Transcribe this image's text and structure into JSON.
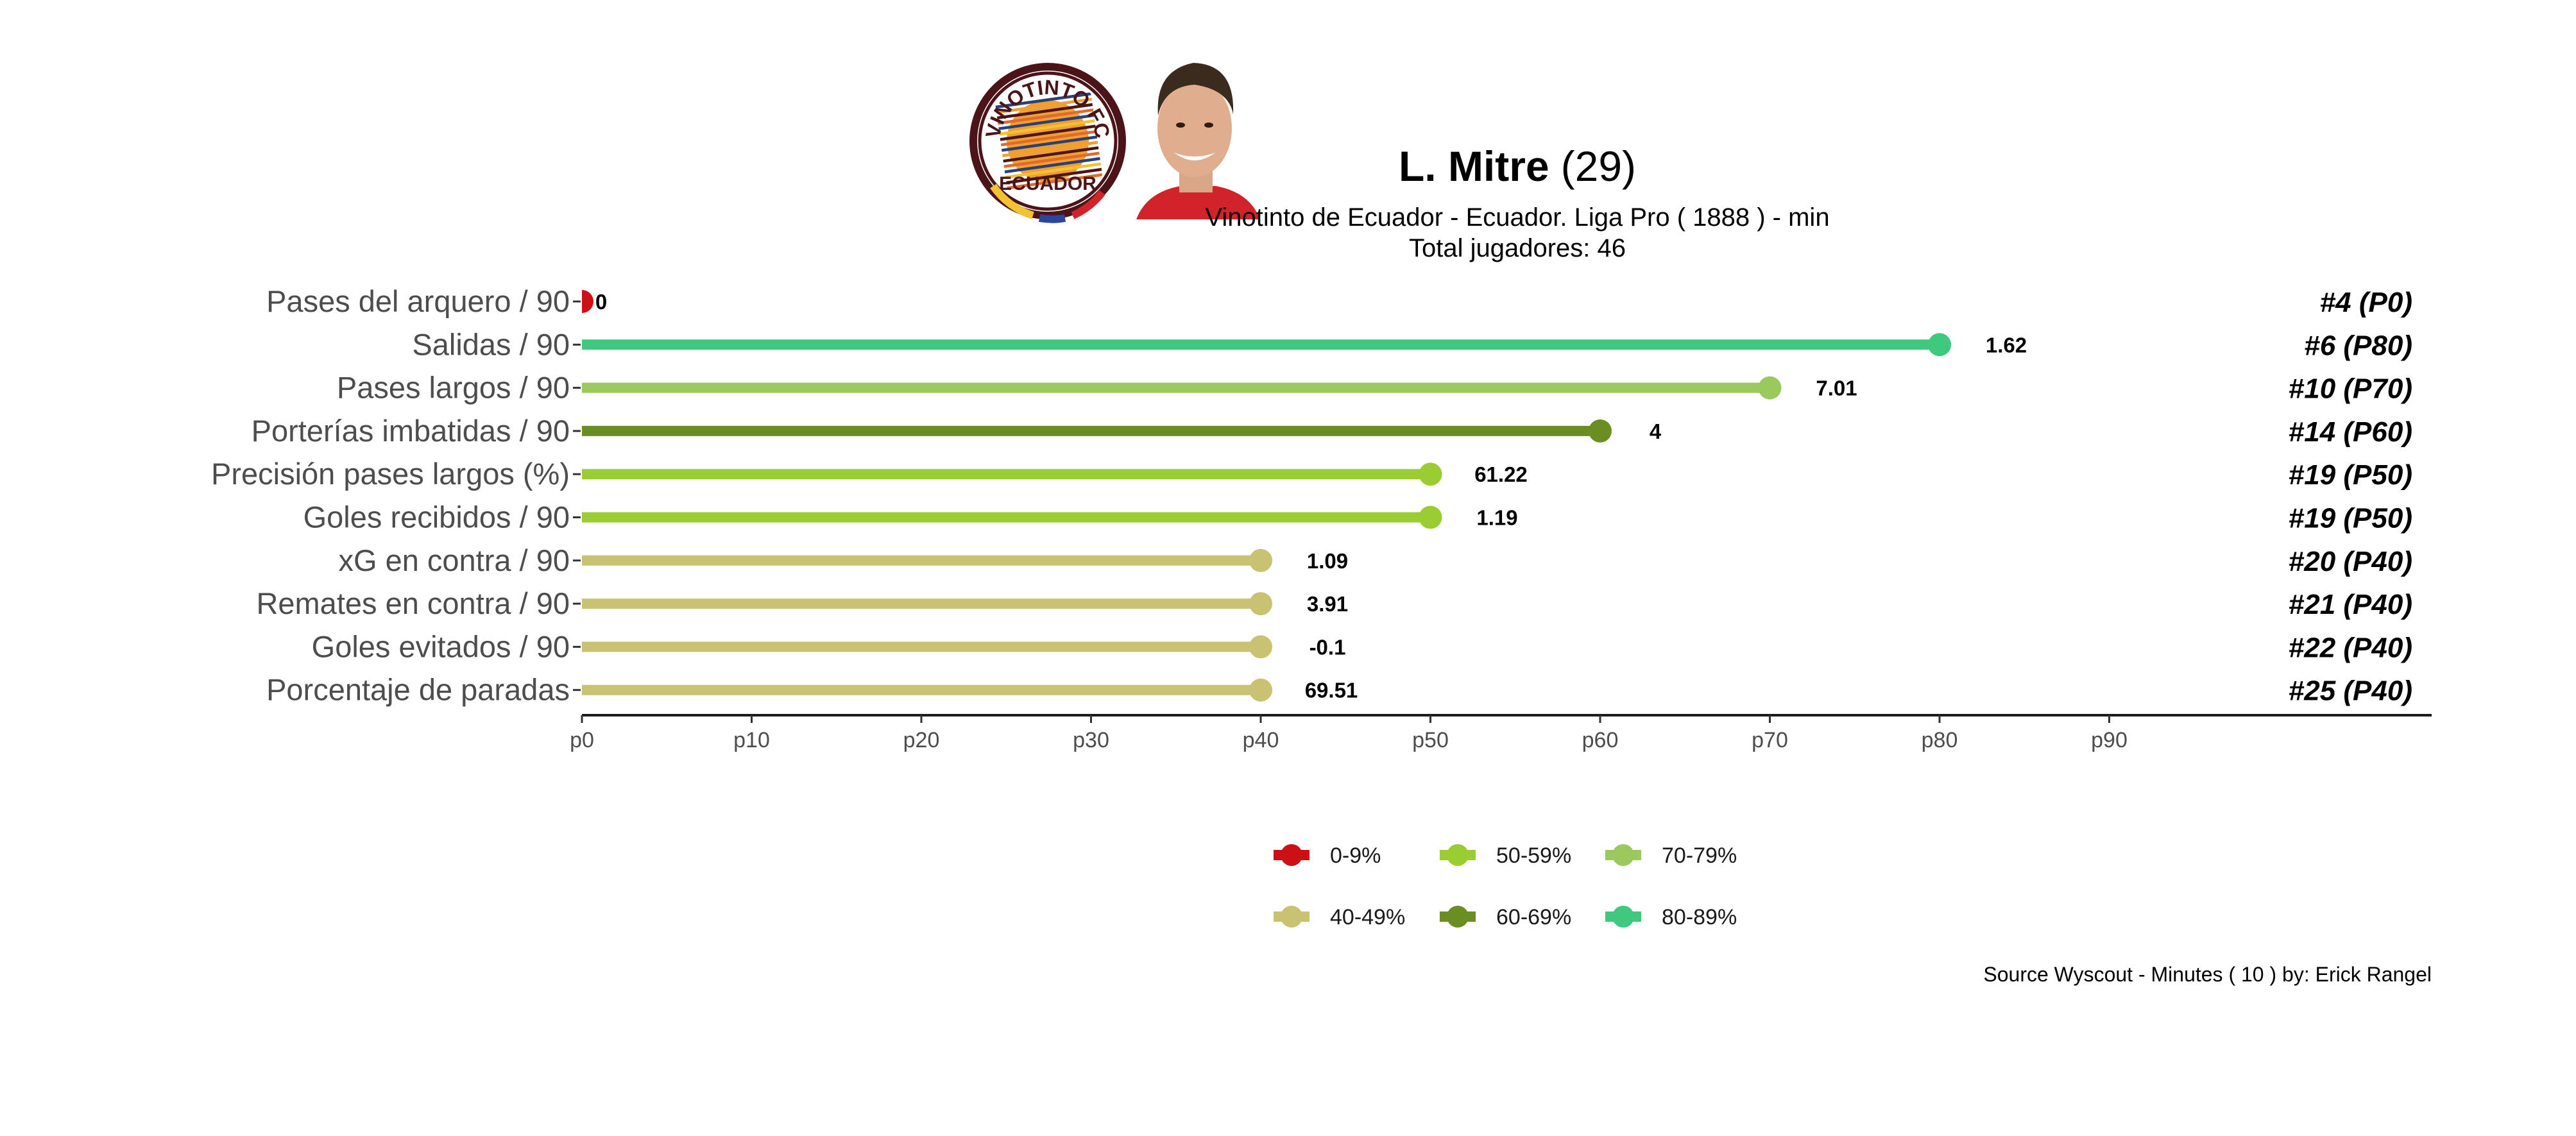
{
  "header": {
    "player_name": "L. Mitre",
    "player_age": "(29)",
    "subtitle": "Vinotinto de Ecuador  -  Ecuador. Liga Pro  ( 1888 ) - min",
    "total_players": "Total jugadores:  46",
    "logo_top_text": "VINOTINTO FC",
    "logo_bottom_text": "ECUADOR"
  },
  "colors": {
    "0-9%": "#cc1016",
    "40-49%": "#c9c273",
    "50-59%": "#9acd32",
    "60-69%": "#6b8e23",
    "70-79%": "#9cc95e",
    "80-89%": "#3ec97f",
    "logo_ring": "#4a1418"
  },
  "chart_data": {
    "type": "lollipop",
    "x_axis": {
      "ticks": [
        "p0",
        "p10",
        "p20",
        "p30",
        "p40",
        "p50",
        "p60",
        "p70",
        "p80",
        "p90"
      ],
      "range": [
        0,
        90
      ]
    },
    "rows": [
      {
        "metric": "Pases del arquero / 90",
        "percentile": 0,
        "value": "0",
        "rank": "#4 (P0)",
        "band": "0-9%"
      },
      {
        "metric": "Salidas / 90",
        "percentile": 80,
        "value": "1.62",
        "rank": "#6 (P80)",
        "band": "80-89%"
      },
      {
        "metric": "Pases largos / 90",
        "percentile": 70,
        "value": "7.01",
        "rank": "#10 (P70)",
        "band": "70-79%"
      },
      {
        "metric": "Porterías imbatidas / 90",
        "percentile": 60,
        "value": "4",
        "rank": "#14 (P60)",
        "band": "60-69%"
      },
      {
        "metric": "Precisión pases largos (%)",
        "percentile": 50,
        "value": "61.22",
        "rank": "#19 (P50)",
        "band": "50-59%"
      },
      {
        "metric": "Goles recibidos / 90",
        "percentile": 50,
        "value": "1.19",
        "rank": "#19 (P50)",
        "band": "50-59%"
      },
      {
        "metric": "xG en contra / 90",
        "percentile": 40,
        "value": "1.09",
        "rank": "#20 (P40)",
        "band": "40-49%"
      },
      {
        "metric": "Remates en contra / 90",
        "percentile": 40,
        "value": "3.91",
        "rank": "#21 (P40)",
        "band": "40-49%"
      },
      {
        "metric": "Goles evitados / 90",
        "percentile": 40,
        "value": "-0.1",
        "rank": "#22 (P40)",
        "band": "40-49%"
      },
      {
        "metric": "Porcentaje de paradas",
        "percentile": 40,
        "value": "69.51",
        "rank": "#25 (P40)",
        "band": "40-49%"
      }
    ],
    "legend": {
      "placement": "bottom-center",
      "items": [
        "0-9%",
        "50-59%",
        "70-79%",
        "40-49%",
        "60-69%",
        "80-89%"
      ]
    }
  },
  "caption": "Source Wyscout - Minutes ( 10 ) by: Erick Rangel"
}
